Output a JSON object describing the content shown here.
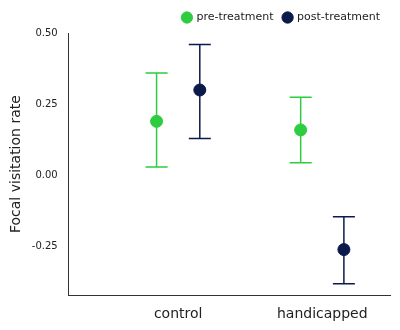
{
  "chart_data": {
    "type": "scatter",
    "y_label": "Focal visitation rate",
    "categories": [
      "control",
      "handicapped"
    ],
    "series": [
      {
        "name": "pre-treatment",
        "color": "#2ecc40",
        "values": [
          0.19,
          0.16
        ],
        "lower": [
          0.03,
          0.045
        ],
        "upper": [
          0.36,
          0.275
        ]
      },
      {
        "name": "post-treatment",
        "color": "#0b1a4a",
        "values": [
          0.3,
          -0.26
        ],
        "lower": [
          0.13,
          -0.38
        ],
        "upper": [
          0.46,
          -0.145
        ]
      }
    ],
    "ylim": [
      -0.42,
      0.5
    ],
    "yticks": [
      {
        "value": -0.25,
        "label": "-0.25"
      },
      {
        "value": 0,
        "label": "0.00"
      },
      {
        "value": 0.25,
        "label": "0.25"
      },
      {
        "value": 0.5,
        "label": "0.50"
      }
    ],
    "grid": false,
    "legend": "top right"
  }
}
